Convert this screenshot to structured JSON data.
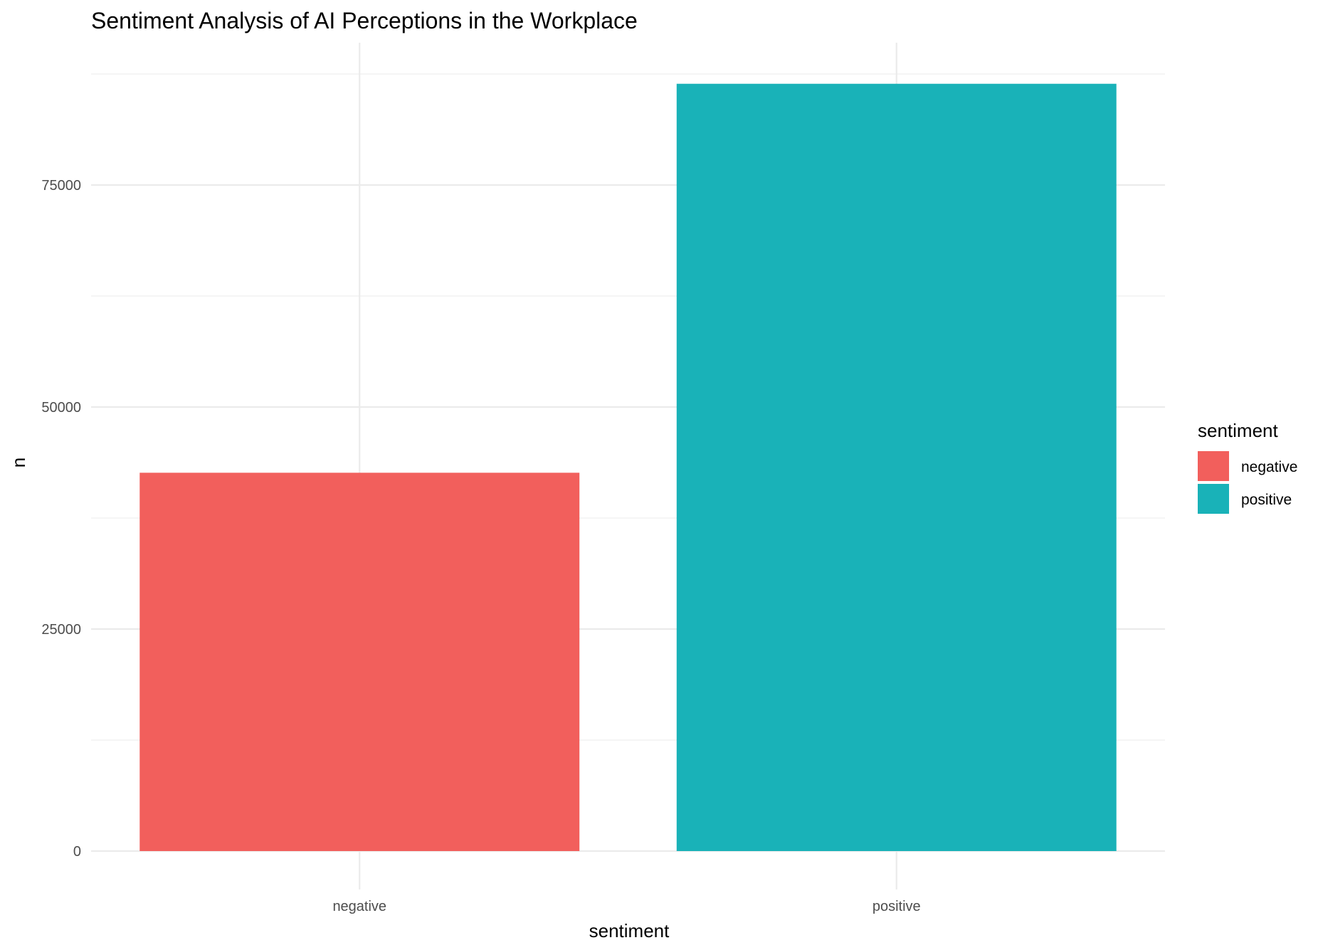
{
  "chart_data": {
    "type": "bar",
    "title": "Sentiment Analysis of AI Perceptions in the Workplace",
    "xlabel": "sentiment",
    "ylabel": "n",
    "categories": [
      "negative",
      "positive"
    ],
    "values": [
      42600,
      86400
    ],
    "colors": [
      "#F25F5C",
      "#19B2B8"
    ],
    "ylim": [
      -3000,
      87500
    ],
    "y_ticks": [
      0,
      25000,
      50000,
      75000
    ],
    "y_tick_labels": [
      "0",
      "25000",
      "50000",
      "75000"
    ],
    "y_minor_ticks": [
      12500,
      37500,
      62500,
      87500
    ],
    "grid": true,
    "legend": {
      "title": "sentiment",
      "position": "right",
      "entries": [
        {
          "label": "negative",
          "color": "#F25F5C"
        },
        {
          "label": "positive",
          "color": "#19B2B8"
        }
      ]
    }
  }
}
